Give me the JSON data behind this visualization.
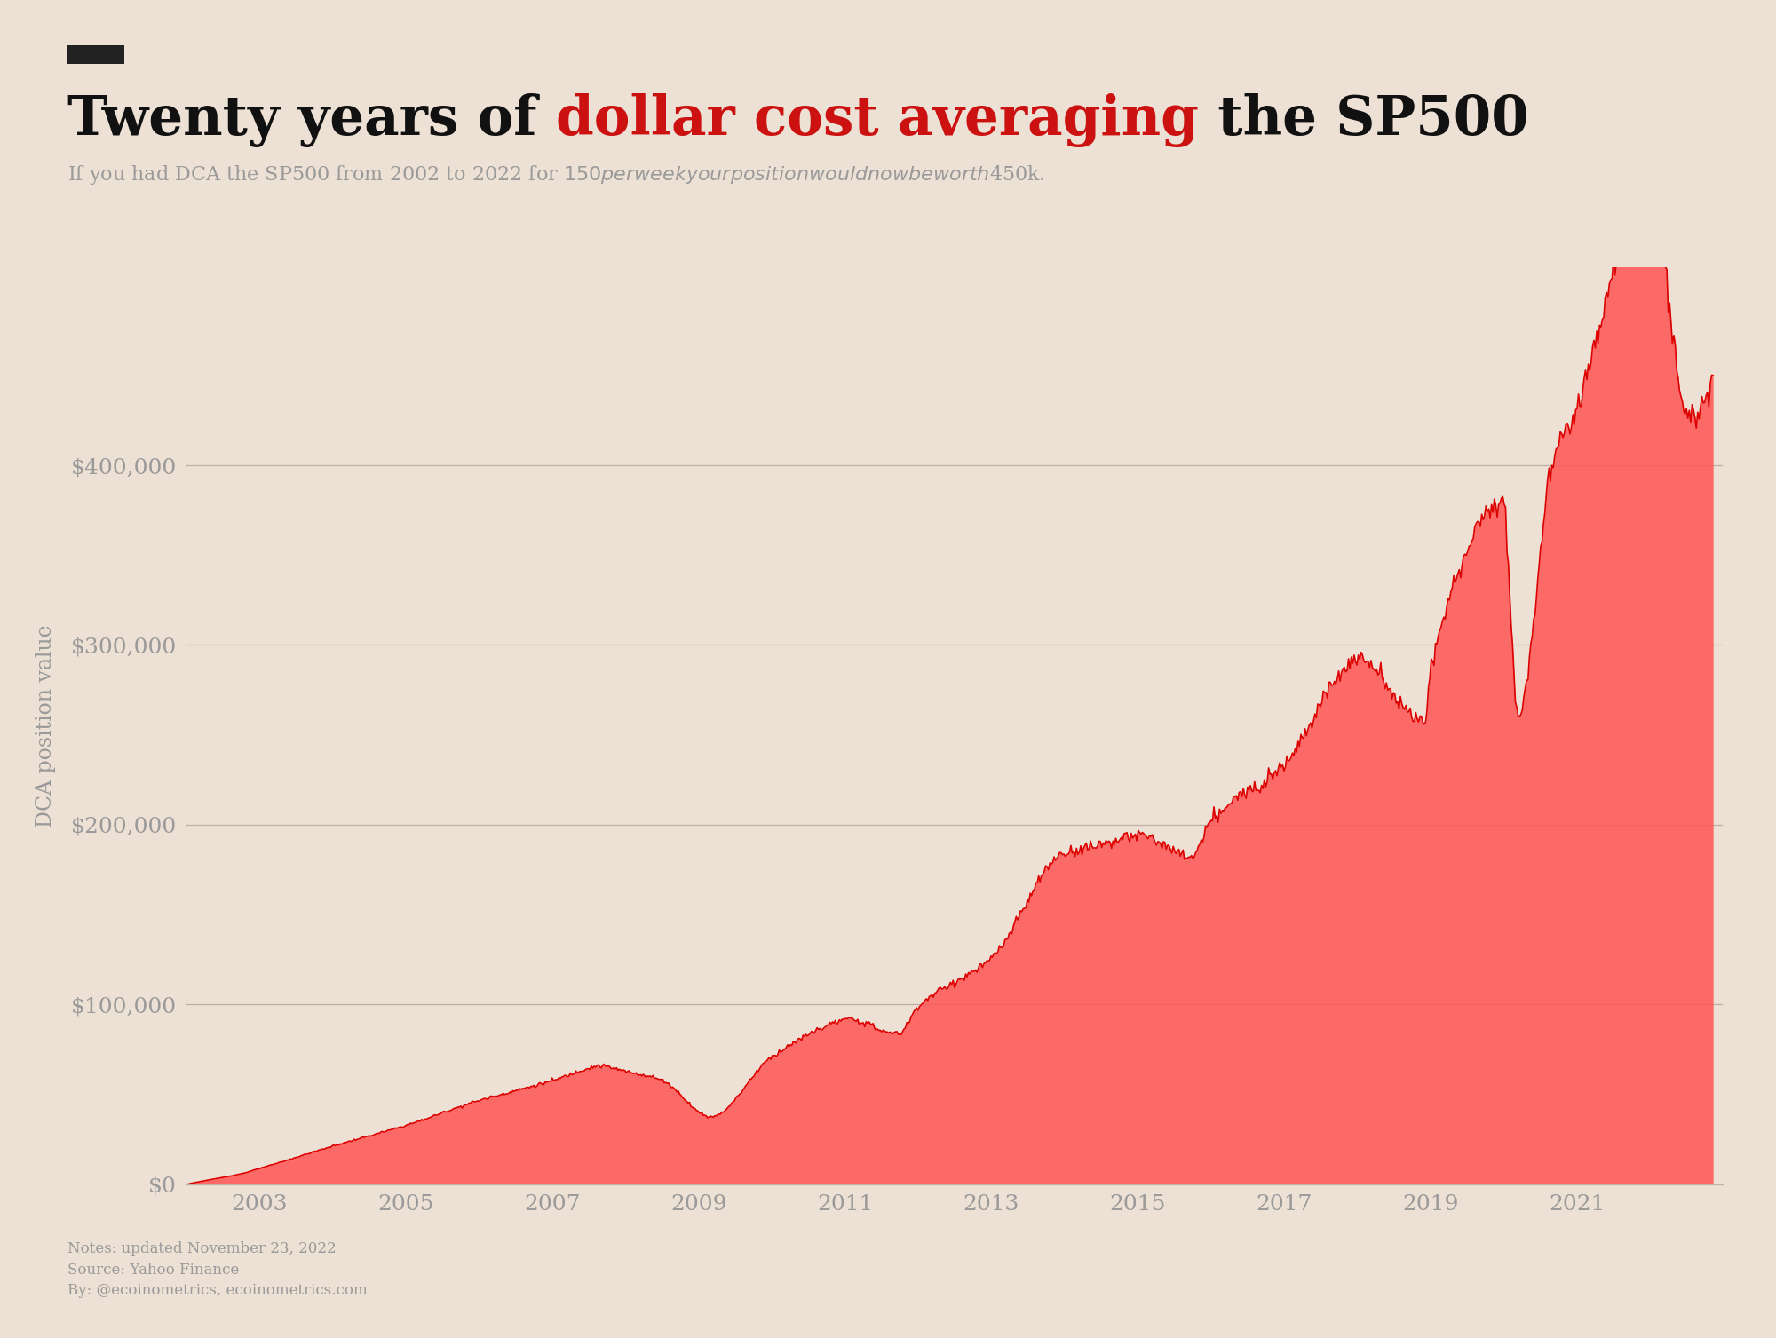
{
  "title_black": "Twenty years of ",
  "title_red": "dollar cost averaging",
  "title_black2": " the SP500",
  "subtitle": "If you had DCA the SP500 from 2002 to 2022 for $150 per week your position would now be worth $450k.",
  "ylabel": "DCA position value",
  "background_color": "#EDE0D4",
  "fill_color": "#FF5555",
  "fill_alpha": 0.85,
  "line_color": "#DD0000",
  "grid_color": "#C0AFA5",
  "text_color_dark": "#111111",
  "text_color_red": "#CC1111",
  "text_color_gray": "#9A9A9A",
  "footer_line1": "Notes: updated November 23, 2022",
  "footer_line2": "Source: Yahoo Finance",
  "footer_line3": "By: @ecoinometrics, ecoinometrics.com",
  "yticks": [
    0,
    100000,
    200000,
    300000,
    400000
  ],
  "ytick_labels": [
    "$0",
    "$100,000",
    "$200,000",
    "$300,000",
    "$400,000"
  ],
  "xtick_years": [
    2003,
    2005,
    2007,
    2009,
    2011,
    2013,
    2015,
    2017,
    2019,
    2021
  ],
  "title_bar_color": "#222222",
  "title_fontsize": 44,
  "subtitle_fontsize": 16,
  "tick_fontsize": 18,
  "ylabel_fontsize": 17,
  "footer_fontsize": 12
}
